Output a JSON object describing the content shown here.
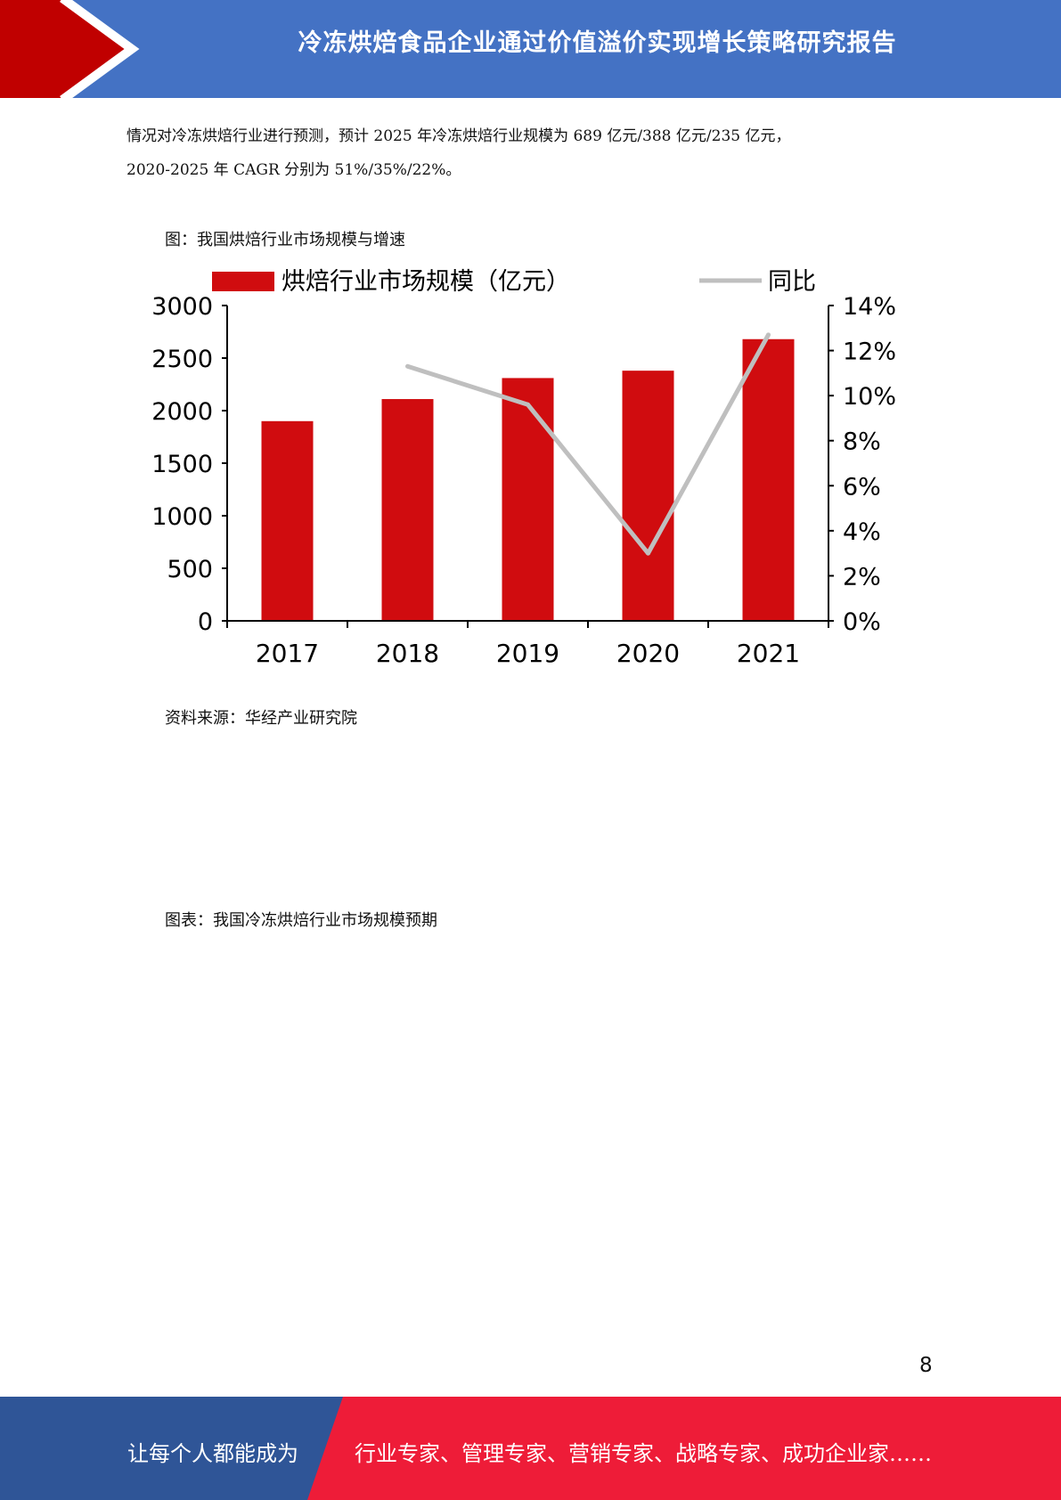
{
  "header": {
    "title": "冷冻烘焙食品企业通过价值溢价实现增长策略研究报告"
  },
  "body": {
    "paragraph_line1": "情况对冷冻烘焙行业进行预测，预计 2025 年冷冻烘焙行业规模为 689 亿元/388 亿元/235 亿元，",
    "paragraph_line2": "2020-2025 年 CAGR 分别为 51%/35%/22%。",
    "figure_caption": "图：我国烘焙行业市场规模与增速",
    "source": "资料来源：华经产业研究院",
    "table_caption": "图表：我国冷冻烘焙行业市场规模预期"
  },
  "chart_data": {
    "type": "bar",
    "categories": [
      "2017",
      "2018",
      "2019",
      "2020",
      "2021"
    ],
    "series": [
      {
        "name": "烘焙行业市场规模（亿元）",
        "type": "bar",
        "axis": "left",
        "color": "#d00c0f",
        "values": [
          1900,
          2110,
          2310,
          2380,
          2680
        ]
      },
      {
        "name": "同比",
        "type": "line",
        "axis": "right",
        "color": "#bfbfbf",
        "values": [
          null,
          11.3,
          9.6,
          3.0,
          12.7
        ]
      }
    ],
    "ylim_left": [
      0,
      3000
    ],
    "yticks_left": [
      "0",
      "500",
      "1000",
      "1500",
      "2000",
      "2500",
      "3000"
    ],
    "ylim_right": [
      0,
      14
    ],
    "yticks_right": [
      "0%",
      "2%",
      "4%",
      "6%",
      "8%",
      "10%",
      "12%",
      "14%"
    ],
    "legend_position": "top",
    "grid": false
  },
  "page_number": "8",
  "footer": {
    "left_text": "让每个人都能成为",
    "right_text": "行业专家、管理专家、营销专家、战略专家、成功企业家……",
    "left_color": "#2f5597",
    "right_color": "#ee1c38"
  }
}
